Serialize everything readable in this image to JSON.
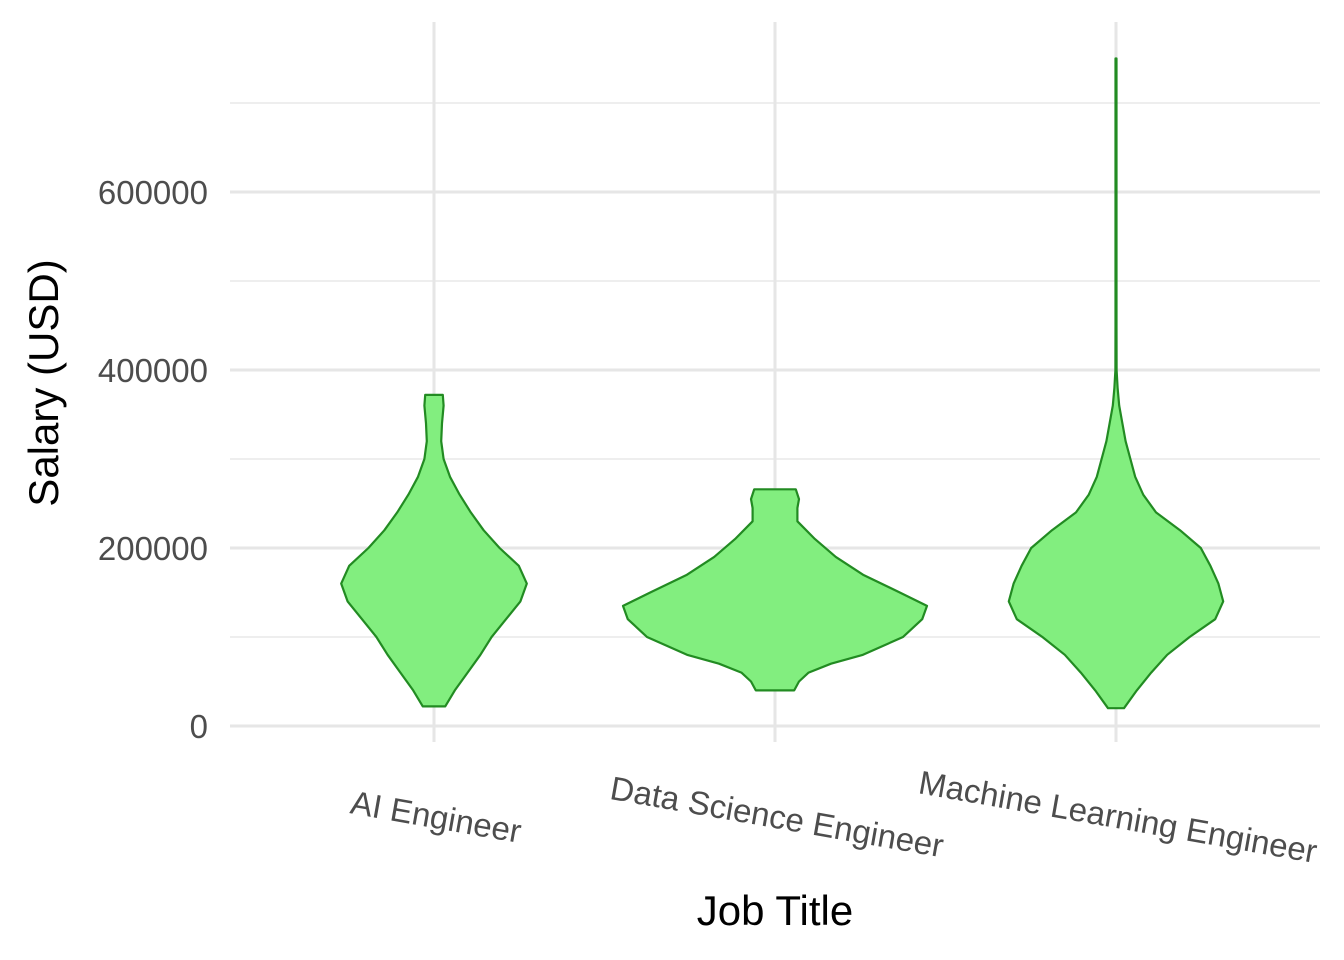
{
  "chart_data": {
    "type": "violin",
    "title": "",
    "xlabel": "Job Title",
    "ylabel": "Salary (USD)",
    "ylim": [
      -30000,
      750000
    ],
    "yticks": [
      0,
      200000,
      400000,
      600000
    ],
    "ytick_labels": [
      "0",
      "200000",
      "400000",
      "600000"
    ],
    "grid": true,
    "legend": "none",
    "fill_color": "#82ee7f",
    "stroke_color": "#228b22",
    "categories": [
      "AI Engineer",
      "Data Science Engineer",
      "Machine Learning Engineer"
    ],
    "series": [
      {
        "min": 22000,
        "max": 372000,
        "profile": [
          [
            22000,
            0.07
          ],
          [
            40000,
            0.13
          ],
          [
            60000,
            0.21
          ],
          [
            80000,
            0.29
          ],
          [
            100000,
            0.36
          ],
          [
            120000,
            0.45
          ],
          [
            140000,
            0.54
          ],
          [
            160000,
            0.58
          ],
          [
            180000,
            0.53
          ],
          [
            200000,
            0.41
          ],
          [
            220000,
            0.31
          ],
          [
            240000,
            0.23
          ],
          [
            260000,
            0.16
          ],
          [
            280000,
            0.1
          ],
          [
            300000,
            0.06
          ],
          [
            320000,
            0.045
          ],
          [
            340000,
            0.05
          ],
          [
            360000,
            0.06
          ],
          [
            372000,
            0.055
          ]
        ]
      },
      {
        "min": 40000,
        "max": 266000,
        "profile": [
          [
            40000,
            0.12
          ],
          [
            50000,
            0.15
          ],
          [
            60000,
            0.21
          ],
          [
            70000,
            0.35
          ],
          [
            80000,
            0.55
          ],
          [
            100000,
            0.8
          ],
          [
            120000,
            0.92
          ],
          [
            135000,
            0.95
          ],
          [
            150000,
            0.78
          ],
          [
            170000,
            0.55
          ],
          [
            190000,
            0.38
          ],
          [
            210000,
            0.25
          ],
          [
            230000,
            0.14
          ],
          [
            245000,
            0.14
          ],
          [
            255000,
            0.15
          ],
          [
            266000,
            0.13
          ]
        ]
      },
      {
        "min": 20000,
        "max": 750000,
        "profile": [
          [
            20000,
            0.05
          ],
          [
            40000,
            0.13
          ],
          [
            60000,
            0.22
          ],
          [
            80000,
            0.32
          ],
          [
            100000,
            0.46
          ],
          [
            120000,
            0.62
          ],
          [
            140000,
            0.67
          ],
          [
            160000,
            0.64
          ],
          [
            180000,
            0.59
          ],
          [
            200000,
            0.53
          ],
          [
            220000,
            0.4
          ],
          [
            240000,
            0.25
          ],
          [
            260000,
            0.17
          ],
          [
            280000,
            0.12
          ],
          [
            300000,
            0.09
          ],
          [
            320000,
            0.06
          ],
          [
            340000,
            0.04
          ],
          [
            360000,
            0.02
          ],
          [
            380000,
            0.01
          ],
          [
            400000,
            0.004
          ],
          [
            450000,
            0.003
          ],
          [
            500000,
            0.003
          ],
          [
            600000,
            0.003
          ],
          [
            700000,
            0.003
          ],
          [
            750000,
            0.003
          ]
        ]
      }
    ]
  }
}
